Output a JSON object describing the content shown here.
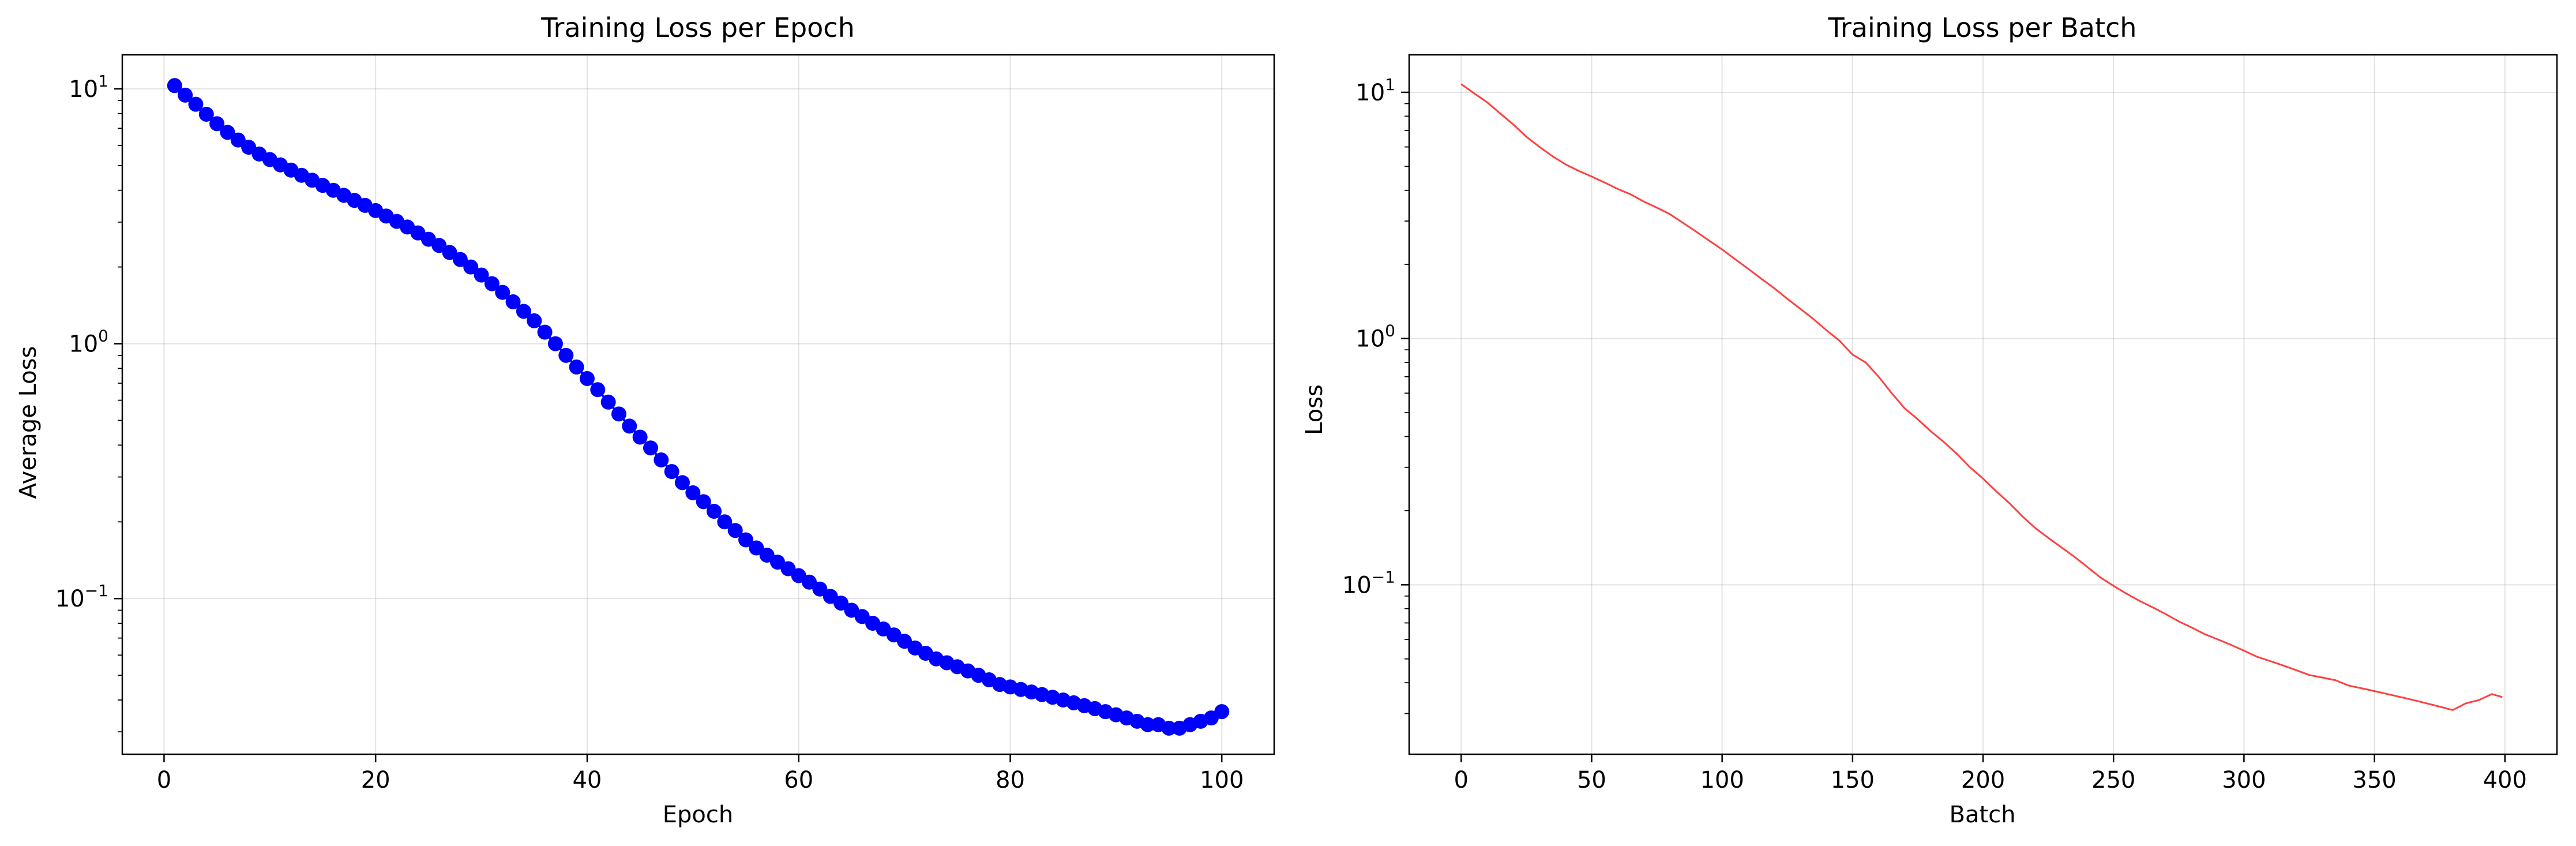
{
  "chart_data": [
    {
      "type": "line",
      "title": "Training Loss per Epoch",
      "xlabel": "Epoch",
      "ylabel": "Average Loss",
      "xlim": [
        -3.95,
        104.95
      ],
      "ylim": [
        0.0245,
        13.6
      ],
      "yscale": "log",
      "xticks": [
        0,
        20,
        40,
        60,
        80,
        100
      ],
      "yticks": [
        {
          "value": 10,
          "base": "10",
          "exp": "1"
        },
        {
          "value": 1,
          "base": "10",
          "exp": "0"
        },
        {
          "value": 0.1,
          "base": "10",
          "exp": "−1"
        }
      ],
      "grid": true,
      "marker": "circle",
      "color": "#0000ff",
      "series": [
        {
          "x": [
            1,
            2,
            3,
            4,
            5,
            6,
            7,
            8,
            9,
            10,
            11,
            12,
            13,
            14,
            15,
            16,
            17,
            18,
            19,
            20,
            21,
            22,
            23,
            24,
            25,
            26,
            27,
            28,
            29,
            30,
            31,
            32,
            33,
            34,
            35,
            36,
            37,
            38,
            39,
            40,
            41,
            42,
            43,
            44,
            45,
            46,
            47,
            48,
            49,
            50,
            51,
            52,
            53,
            54,
            55,
            56,
            57,
            58,
            59,
            60,
            61,
            62,
            63,
            64,
            65,
            66,
            67,
            68,
            69,
            70,
            71,
            72,
            73,
            74,
            75,
            76,
            77,
            78,
            79,
            80,
            81,
            82,
            83,
            84,
            85,
            86,
            87,
            88,
            89,
            90,
            91,
            92,
            93,
            94,
            95,
            96,
            97,
            98,
            99,
            100
          ],
          "values": [
            10.3,
            9.45,
            8.7,
            7.95,
            7.3,
            6.75,
            6.3,
            5.9,
            5.55,
            5.28,
            5.03,
            4.8,
            4.58,
            4.38,
            4.18,
            4.0,
            3.82,
            3.65,
            3.49,
            3.33,
            3.17,
            3.02,
            2.87,
            2.72,
            2.57,
            2.43,
            2.28,
            2.14,
            2.0,
            1.86,
            1.72,
            1.59,
            1.46,
            1.34,
            1.23,
            1.11,
            1.0,
            0.9,
            0.81,
            0.73,
            0.66,
            0.59,
            0.53,
            0.475,
            0.43,
            0.39,
            0.35,
            0.315,
            0.285,
            0.26,
            0.24,
            0.22,
            0.2,
            0.185,
            0.17,
            0.158,
            0.148,
            0.139,
            0.131,
            0.123,
            0.116,
            0.109,
            0.102,
            0.096,
            0.09,
            0.085,
            0.08,
            0.076,
            0.072,
            0.068,
            0.064,
            0.061,
            0.058,
            0.056,
            0.054,
            0.052,
            0.05,
            0.048,
            0.046,
            0.045,
            0.044,
            0.043,
            0.042,
            0.041,
            0.04,
            0.039,
            0.038,
            0.037,
            0.036,
            0.035,
            0.034,
            0.033,
            0.032,
            0.032,
            0.031,
            0.031,
            0.032,
            0.033,
            0.034,
            0.036
          ]
        }
      ]
    },
    {
      "type": "line",
      "title": "Training Loss per Batch",
      "xlabel": "Batch",
      "ylabel": "Loss",
      "xlim": [
        -19.95,
        419.95
      ],
      "ylim": [
        0.0205,
        14.2
      ],
      "yscale": "log",
      "xticks": [
        0,
        50,
        100,
        150,
        200,
        250,
        300,
        350,
        400
      ],
      "yticks": [
        {
          "value": 10,
          "base": "10",
          "exp": "1"
        },
        {
          "value": 1,
          "base": "10",
          "exp": "0"
        },
        {
          "value": 0.1,
          "base": "10",
          "exp": "−1"
        }
      ],
      "grid": true,
      "color": "#ff2020",
      "series": [
        {
          "x": [
            0,
            5,
            10,
            15,
            20,
            25,
            30,
            35,
            40,
            45,
            50,
            55,
            60,
            65,
            70,
            75,
            80,
            85,
            90,
            95,
            100,
            105,
            110,
            115,
            120,
            125,
            130,
            135,
            140,
            145,
            150,
            155,
            160,
            165,
            170,
            175,
            180,
            185,
            190,
            195,
            200,
            205,
            210,
            215,
            220,
            225,
            230,
            235,
            240,
            245,
            250,
            255,
            260,
            265,
            270,
            275,
            280,
            285,
            290,
            295,
            300,
            305,
            310,
            315,
            320,
            325,
            330,
            335,
            340,
            345,
            350,
            355,
            360,
            365,
            370,
            375,
            380,
            385,
            390,
            395,
            399
          ],
          "values": [
            10.8,
            9.9,
            9.1,
            8.2,
            7.4,
            6.6,
            6.0,
            5.5,
            5.1,
            4.8,
            4.55,
            4.3,
            4.05,
            3.85,
            3.6,
            3.4,
            3.2,
            2.95,
            2.72,
            2.5,
            2.3,
            2.1,
            1.92,
            1.75,
            1.6,
            1.45,
            1.32,
            1.2,
            1.08,
            0.98,
            0.86,
            0.8,
            0.7,
            0.6,
            0.52,
            0.47,
            0.42,
            0.38,
            0.34,
            0.3,
            0.27,
            0.24,
            0.215,
            0.19,
            0.17,
            0.155,
            0.142,
            0.13,
            0.118,
            0.107,
            0.099,
            0.092,
            0.086,
            0.081,
            0.076,
            0.071,
            0.067,
            0.063,
            0.06,
            0.057,
            0.054,
            0.051,
            0.049,
            0.047,
            0.045,
            0.043,
            0.042,
            0.041,
            0.039,
            0.038,
            0.037,
            0.036,
            0.035,
            0.034,
            0.033,
            0.032,
            0.031,
            0.033,
            0.034,
            0.036,
            0.035
          ]
        }
      ]
    }
  ]
}
